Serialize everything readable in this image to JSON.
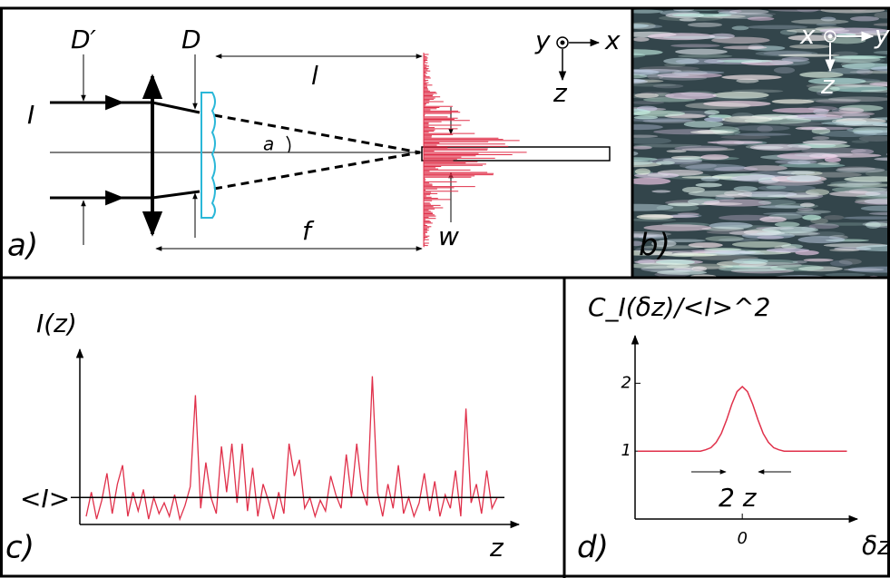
{
  "panel_a": {
    "label": "a)",
    "D_prime": "D′",
    "D": "D",
    "l": "l",
    "I": "I",
    "alpha": "a",
    "f": "f",
    "w": "w",
    "y": "y",
    "x": "x",
    "z": "z"
  },
  "panel_b": {
    "label": "b)",
    "x": "x",
    "y": "y",
    "z": "z"
  },
  "panel_c": {
    "type": "line",
    "label": "c)",
    "y_label": "I(z)",
    "mean_label": "<I>",
    "x_label": "z",
    "mean": 1.0,
    "ylim": [
      0,
      6.5
    ],
    "color": "#e0304a",
    "values": [
      0.3,
      1.2,
      0.2,
      0.9,
      1.9,
      0.4,
      1.5,
      2.2,
      0.3,
      1.2,
      0.5,
      1.3,
      0.2,
      1.0,
      0.4,
      0.8,
      0.3,
      1.1,
      0.2,
      0.7,
      1.4,
      4.8,
      0.6,
      2.3,
      1.0,
      0.4,
      2.9,
      1.2,
      3.0,
      0.8,
      3.0,
      0.5,
      2.1,
      0.3,
      1.5,
      0.9,
      0.2,
      1.2,
      0.4,
      3.0,
      1.8,
      2.4,
      0.6,
      1.0,
      0.3,
      0.9,
      0.5,
      1.8,
      1.1,
      0.6,
      2.6,
      1.0,
      3.0,
      1.3,
      0.7,
      5.5,
      1.2,
      0.3,
      1.5,
      0.6,
      2.2,
      0.4,
      1.0,
      0.3,
      0.8,
      1.9,
      0.5,
      1.6,
      0.3,
      1.1,
      0.6,
      2.0,
      0.3,
      4.3,
      0.8,
      1.5,
      0.4,
      2.0,
      0.6,
      1.0
    ]
  },
  "panel_d": {
    "type": "line",
    "label": "d)",
    "y_label": "C_I(δz)/<I>^2",
    "x_label": "δz",
    "width_label": "2 z",
    "color": "#e0304a",
    "xlim": [
      -4.1,
      4.4
    ],
    "ylim": [
      0,
      2.7
    ],
    "xticks": [
      0
    ],
    "yticks": [
      1,
      2
    ],
    "x": [
      -4,
      -3.6,
      -3.2,
      -2.8,
      -2.4,
      -2,
      -1.6,
      -1.4,
      -1.2,
      -1,
      -0.8,
      -0.6,
      -0.4,
      -0.2,
      0,
      0.2,
      0.4,
      0.6,
      0.8,
      1,
      1.2,
      1.4,
      1.6,
      2,
      2.4,
      2.8,
      3.2,
      3.6,
      4
    ],
    "values": [
      1,
      1,
      1,
      1,
      1,
      1,
      1,
      1.02,
      1.05,
      1.13,
      1.26,
      1.46,
      1.69,
      1.877,
      1.95,
      1.877,
      1.69,
      1.46,
      1.26,
      1.13,
      1.05,
      1.02,
      1,
      1,
      1,
      1,
      1,
      1,
      1
    ]
  }
}
